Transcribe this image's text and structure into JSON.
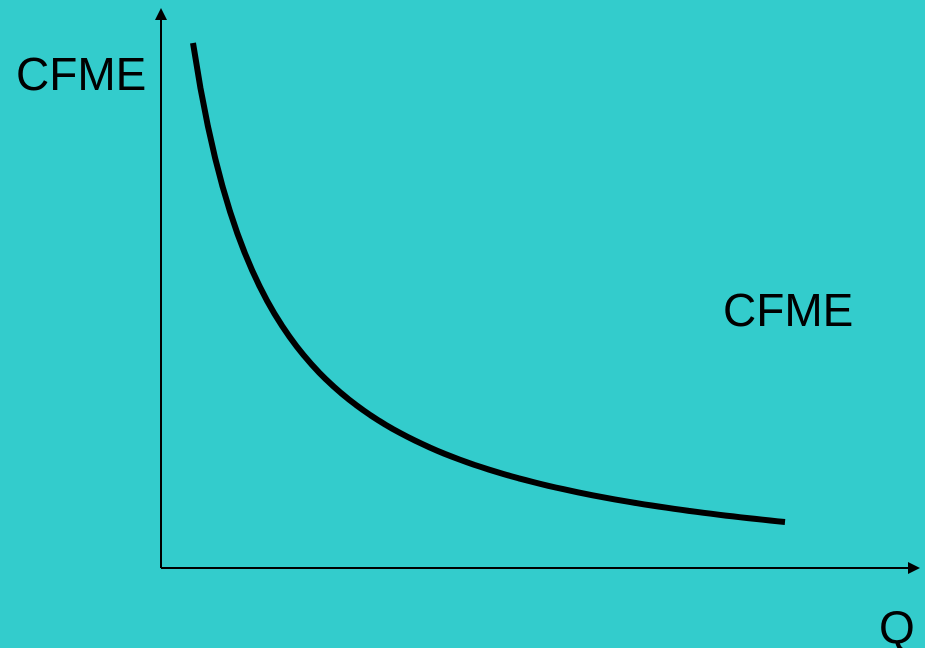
{
  "chart_data": {
    "type": "line",
    "title": "",
    "ylabel": "CFME",
    "xlabel": "Q",
    "series": [
      {
        "name": "CFME",
        "shape": "decreasing-convex",
        "x": [
          1,
          2,
          3,
          4,
          5,
          6,
          7,
          8,
          9,
          10
        ],
        "y": [
          10,
          5,
          3.33,
          2.5,
          2,
          1.67,
          1.43,
          1.25,
          1.11,
          1
        ]
      }
    ],
    "grid": false,
    "ticks": false,
    "colors": {
      "background": "#33CCCC",
      "axis": "#000000",
      "curve": "#000000"
    }
  }
}
